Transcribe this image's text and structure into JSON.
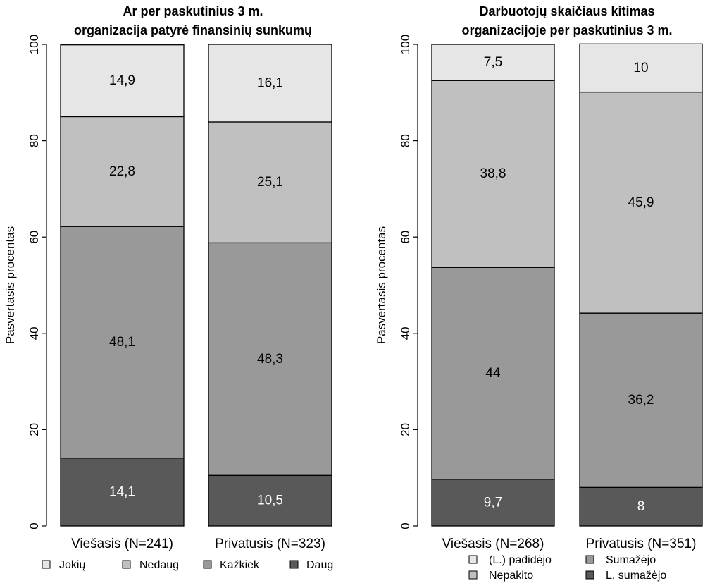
{
  "chart_data": [
    {
      "type": "bar",
      "stacked": true,
      "title": "Ar per paskutinius 3 m.",
      "subtitle": "organizacija patyrė finansinių sunkumų",
      "ylabel": "Pasvertasis procentas",
      "ylim": [
        0,
        100
      ],
      "yticks": [
        "0",
        "20",
        "40",
        "60",
        "80",
        "100"
      ],
      "categories": [
        "Viešasis (N=241)",
        "Privatusis (N=323)"
      ],
      "series": [
        {
          "name": "Daug",
          "values": [
            14.1,
            10.5
          ],
          "labels": [
            "14,1",
            "10,5"
          ],
          "color": "#595959",
          "label_color": "#ffffff"
        },
        {
          "name": "Kažkiek",
          "values": [
            48.1,
            48.3
          ],
          "labels": [
            "48,1",
            "48,3"
          ],
          "color": "#999999",
          "label_color": "#000000"
        },
        {
          "name": "Nedaug",
          "values": [
            22.8,
            25.1
          ],
          "labels": [
            "22,8",
            "25,1"
          ],
          "color": "#c0c0c0",
          "label_color": "#000000"
        },
        {
          "name": "Jokių",
          "values": [
            14.9,
            16.1
          ],
          "labels": [
            "14,9",
            "16,1"
          ],
          "color": "#e6e6e6",
          "label_color": "#000000"
        }
      ],
      "legend": {
        "placement": "bottom",
        "order": [
          "Jokių",
          "Nedaug",
          "Kažkiek",
          "Daug"
        ]
      }
    },
    {
      "type": "bar",
      "stacked": true,
      "title": "Darbuotojų skaičiaus kitimas",
      "subtitle": "organizacijoje per paskutinius 3 m.",
      "ylabel": "Pasvertasis procentas",
      "ylim": [
        0,
        100
      ],
      "yticks": [
        "0",
        "20",
        "40",
        "60",
        "80",
        "100"
      ],
      "categories": [
        "Viešasis (N=268)",
        "Privatusis (N=351)"
      ],
      "series": [
        {
          "name": "L. sumažėjo",
          "values": [
            9.7,
            8
          ],
          "labels": [
            "9,7",
            "8"
          ],
          "color": "#595959",
          "label_color": "#ffffff"
        },
        {
          "name": "Sumažėjo",
          "values": [
            44,
            36.2
          ],
          "labels": [
            "44",
            "36,2"
          ],
          "color": "#999999",
          "label_color": "#000000"
        },
        {
          "name": "Nepakito",
          "values": [
            38.8,
            45.9
          ],
          "labels": [
            "38,8",
            "45,9"
          ],
          "color": "#c0c0c0",
          "label_color": "#000000"
        },
        {
          "name": "(L.) padidėjo",
          "values": [
            7.5,
            10
          ],
          "labels": [
            "7,5",
            "10"
          ],
          "color": "#e6e6e6",
          "label_color": "#000000"
        }
      ],
      "legend": {
        "placement": "bottom",
        "order": [
          "(L.) padidėjo",
          "Nepakito",
          "Sumažėjo",
          "L. sumažėjo"
        ]
      }
    }
  ]
}
